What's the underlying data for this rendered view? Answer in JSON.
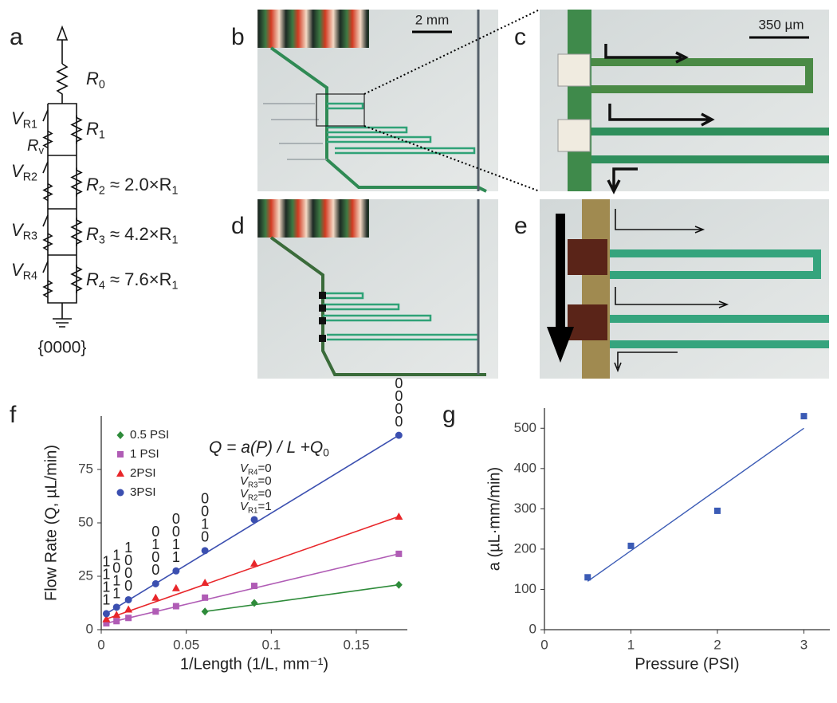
{
  "panel_labels": [
    "a",
    "b",
    "c",
    "d",
    "e",
    "f",
    "g"
  ],
  "circuit": {
    "right_labels": [
      [
        {
          "text": "R"
        },
        {
          "sub": "0"
        }
      ],
      [
        {
          "text": "R"
        },
        {
          "sub": "1"
        }
      ],
      [
        {
          "text": "R"
        },
        {
          "sub": "2"
        },
        {
          "text": " ≈ 2.0×R"
        },
        {
          "sub": "1"
        }
      ],
      [
        {
          "text": "R"
        },
        {
          "sub": "3"
        },
        {
          "text": " ≈ 4.2×R"
        },
        {
          "sub": "1"
        }
      ],
      [
        {
          "text": "R"
        },
        {
          "sub": "4"
        },
        {
          "text": " ≈ 7.6×R"
        },
        {
          "sub": "1"
        }
      ]
    ],
    "switch_labels": [
      [
        {
          "text": "V"
        },
        {
          "sub": "R1"
        }
      ],
      [
        {
          "text": "V"
        },
        {
          "sub": "R2"
        }
      ],
      [
        {
          "text": "V"
        },
        {
          "sub": "R3"
        }
      ],
      [
        {
          "text": "V"
        },
        {
          "sub": "R4"
        }
      ]
    ],
    "valve_resistor": [
      {
        "text": "R"
      },
      {
        "sub": "v"
      }
    ],
    "state": "{0000}"
  },
  "scale_bars": {
    "b": "2 mm",
    "c": "350 µm"
  },
  "chart_data": [
    {
      "type": "scatter",
      "x_label": "1/Length (1/L, mm⁻¹)",
      "y_label": "Flow Rate (Q, µL/min)",
      "equation": [
        {
          "text": "Q = a(P) / L +Q"
        },
        {
          "sub": "0"
        }
      ],
      "x": [
        0.003,
        0.009,
        0.016,
        0.032,
        0.044,
        0.061,
        0.09,
        0.175
      ],
      "series": [
        {
          "name": "0.5 PSI",
          "color": "#2e8b3a",
          "marker": "diamond",
          "values": [
            null,
            null,
            null,
            null,
            null,
            8.5,
            12.5,
            21
          ]
        },
        {
          "name": "1 PSI",
          "color": "#b05cb5",
          "marker": "square",
          "values": [
            3,
            4,
            5.5,
            8.5,
            11,
            15,
            20.5,
            35.5
          ]
        },
        {
          "name": "2PSI",
          "color": "#e8262a",
          "marker": "triangle",
          "values": [
            5,
            7,
            9.5,
            15,
            19.5,
            22,
            31,
            53
          ]
        },
        {
          "name": "3PSI",
          "color": "#3b4fb0",
          "marker": "circle",
          "values": [
            7.5,
            10.5,
            14,
            21.5,
            27.5,
            37,
            51.5,
            91
          ]
        }
      ],
      "codes": [
        [
          "1",
          "1",
          "1",
          "1"
        ],
        [
          "1",
          "0",
          "1",
          "1"
        ],
        [
          "1",
          "0",
          "0",
          "0"
        ],
        [
          "0",
          "1",
          "0",
          "0"
        ],
        [
          "0",
          "0",
          "1",
          "1"
        ],
        [
          "0",
          "0",
          "1",
          "0"
        ],
        null,
        [
          "0",
          "0",
          "0",
          "0"
        ]
      ],
      "state_labels": [
        [
          {
            "text": "V"
          },
          {
            "sub": "R4"
          },
          {
            "text": "=0"
          }
        ],
        [
          {
            "text": "V"
          },
          {
            "sub": "R3"
          },
          {
            "text": "=0"
          }
        ],
        [
          {
            "text": "V"
          },
          {
            "sub": "R2"
          },
          {
            "text": "=0"
          }
        ],
        [
          {
            "text": "V"
          },
          {
            "sub": "R1"
          },
          {
            "text": "=1"
          }
        ]
      ],
      "xlim": [
        0,
        0.18
      ],
      "ylim": [
        0,
        100
      ],
      "xticks": [
        0,
        0.05,
        0.1,
        0.15
      ],
      "yticks": [
        0,
        25,
        50,
        75
      ],
      "legend": "upper left"
    },
    {
      "type": "scatter",
      "x_label": "Pressure (PSI)",
      "y_label": "a (µL·mm/min)",
      "x": [
        0.5,
        1,
        2,
        3
      ],
      "series": [
        {
          "color": "#3b5bb5",
          "marker": "square",
          "values": [
            130,
            208,
            295,
            530
          ]
        }
      ],
      "trend_line": {
        "x": [
          0.5,
          3
        ],
        "values": [
          120,
          500
        ],
        "color": "#3b5bb5"
      },
      "xlim": [
        0,
        3.3
      ],
      "ylim": [
        0,
        550
      ],
      "xticks": [
        0,
        1,
        2,
        3
      ],
      "yticks": [
        0,
        100,
        200,
        300,
        400,
        500
      ]
    }
  ]
}
